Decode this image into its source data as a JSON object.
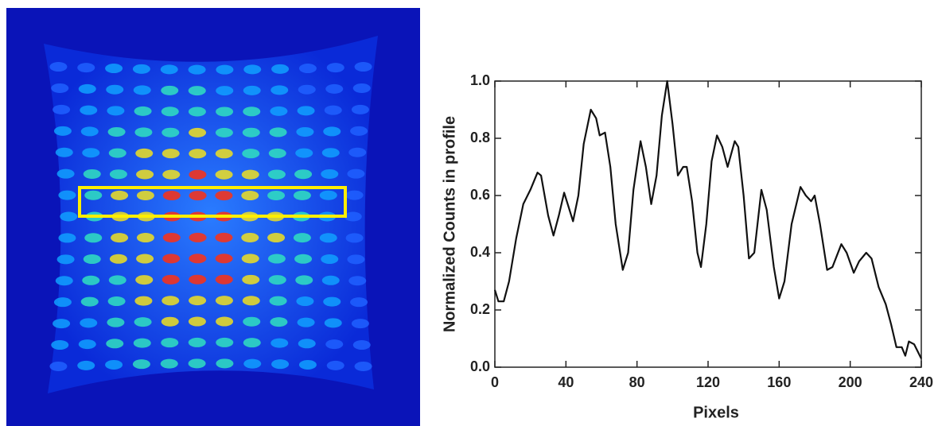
{
  "chart_data": {
    "type": "line",
    "xlabel": "Pixels",
    "ylabel": "Normalized Counts in profile",
    "xlim": [
      0,
      240
    ],
    "xticks": [
      0,
      40,
      80,
      120,
      160,
      200,
      240
    ],
    "ylim": [
      0,
      1
    ],
    "yticks": [
      {
        "value": 0,
        "label": "0.0"
      },
      0.2,
      0.4,
      0.6,
      0.8,
      {
        "value": 1,
        "label": "1.0"
      }
    ],
    "color": "#111111",
    "x": [
      0,
      2,
      5,
      8,
      12,
      16,
      20,
      24,
      26,
      30,
      33,
      36,
      39,
      42,
      44,
      47,
      50,
      54,
      57,
      59,
      62,
      65,
      68,
      72,
      75,
      78,
      82,
      85,
      88,
      91,
      94,
      97,
      100,
      103,
      106,
      108,
      111,
      114,
      116,
      119,
      122,
      125,
      128,
      131,
      135,
      137,
      140,
      143,
      146,
      150,
      153,
      157,
      160,
      163,
      167,
      172,
      175,
      178,
      180,
      183,
      187,
      190,
      195,
      198,
      202,
      205,
      209,
      212,
      216,
      220,
      223,
      226,
      229,
      231,
      233,
      236,
      240
    ],
    "values": [
      0.27,
      0.23,
      0.23,
      0.3,
      0.45,
      0.57,
      0.62,
      0.68,
      0.67,
      0.53,
      0.46,
      0.53,
      0.61,
      0.55,
      0.51,
      0.6,
      0.78,
      0.9,
      0.87,
      0.81,
      0.82,
      0.7,
      0.5,
      0.34,
      0.4,
      0.62,
      0.79,
      0.7,
      0.57,
      0.67,
      0.88,
      1.0,
      0.85,
      0.67,
      0.7,
      0.7,
      0.58,
      0.4,
      0.35,
      0.5,
      0.72,
      0.81,
      0.77,
      0.7,
      0.79,
      0.77,
      0.6,
      0.38,
      0.4,
      0.62,
      0.55,
      0.35,
      0.24,
      0.3,
      0.5,
      0.63,
      0.6,
      0.58,
      0.6,
      0.5,
      0.34,
      0.35,
      0.43,
      0.4,
      0.33,
      0.37,
      0.4,
      0.38,
      0.28,
      0.22,
      0.15,
      0.07,
      0.07,
      0.04,
      0.09,
      0.08,
      0.03
    ]
  }
}
